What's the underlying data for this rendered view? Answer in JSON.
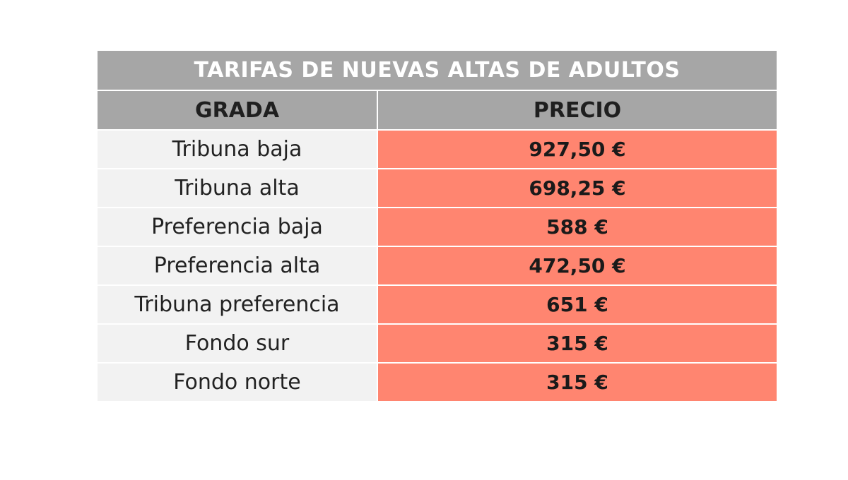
{
  "table": {
    "title": "TARIFAS DE NUEVAS ALTAS DE ADULTOS",
    "headers": {
      "grada": "GRADA",
      "precio": "PRECIO"
    },
    "rows": [
      {
        "grada": "Tribuna baja",
        "precio": "927,50 €"
      },
      {
        "grada": "Tribuna alta",
        "precio": "698,25 €"
      },
      {
        "grada": "Preferencia baja",
        "precio": "588 €"
      },
      {
        "grada": "Preferencia alta",
        "precio": "472,50 €"
      },
      {
        "grada": "Tribuna preferencia",
        "precio": "651 €"
      },
      {
        "grada": "Fondo sur",
        "precio": "315 €"
      },
      {
        "grada": "Fondo norte",
        "precio": "315 €"
      }
    ]
  },
  "colors": {
    "header_bg": "#a6a6a6",
    "header_title_text": "#ffffff",
    "grada_bg": "#f2f2f2",
    "precio_bg": "#ff8570"
  }
}
